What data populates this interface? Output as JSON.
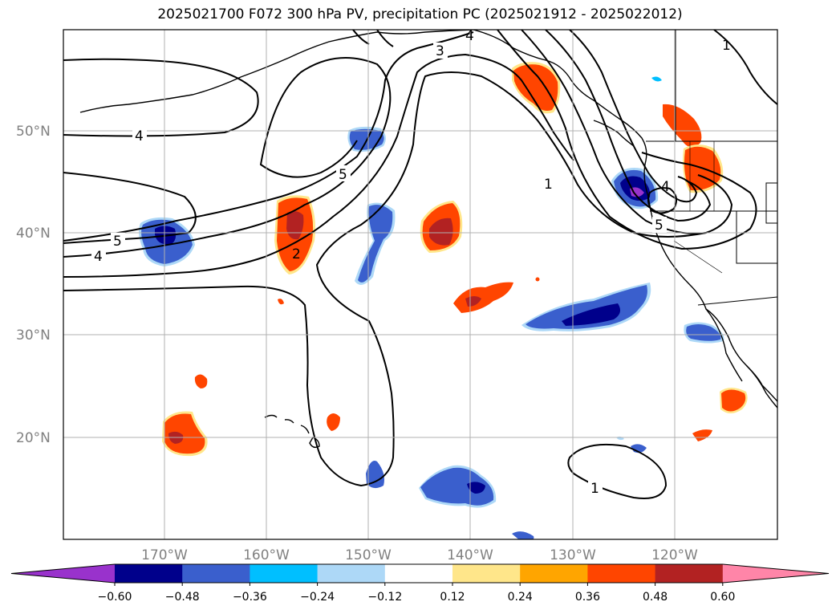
{
  "title": "2025021700 F072 300 hPa PV, precipitation PC (2025021912 - 2025022012)",
  "lat_labels": [
    "50°N",
    "40°N",
    "30°N",
    "20°N"
  ],
  "lon_labels": [
    "170°W",
    "160°W",
    "150°W",
    "140°W",
    "130°W",
    "120°W"
  ],
  "colorbar": {
    "ticks": [
      "−0.60",
      "−0.48",
      "−0.36",
      "−0.24",
      "−0.12",
      "0.12",
      "0.24",
      "0.36",
      "0.48",
      "0.60"
    ],
    "colors": [
      "#9932cc",
      "#00008b",
      "#3a5fcd",
      "#00bfff",
      "#add8f7",
      "#ffffff",
      "#ffe68a",
      "#ffa500",
      "#ff4500",
      "#b22222",
      "#ff85a8"
    ]
  },
  "contour_labels": [
    "4",
    "5",
    "4",
    "2",
    "5",
    "3",
    "4",
    "1",
    "4",
    "5",
    "1",
    "1"
  ],
  "colors": {
    "positive_strong": "#ff4500",
    "positive_max": "#b22222",
    "negative_strong": "#3a5fcd",
    "negative_max": "#00008b",
    "contour": "#000000",
    "grid": "#b0b0b0"
  }
}
